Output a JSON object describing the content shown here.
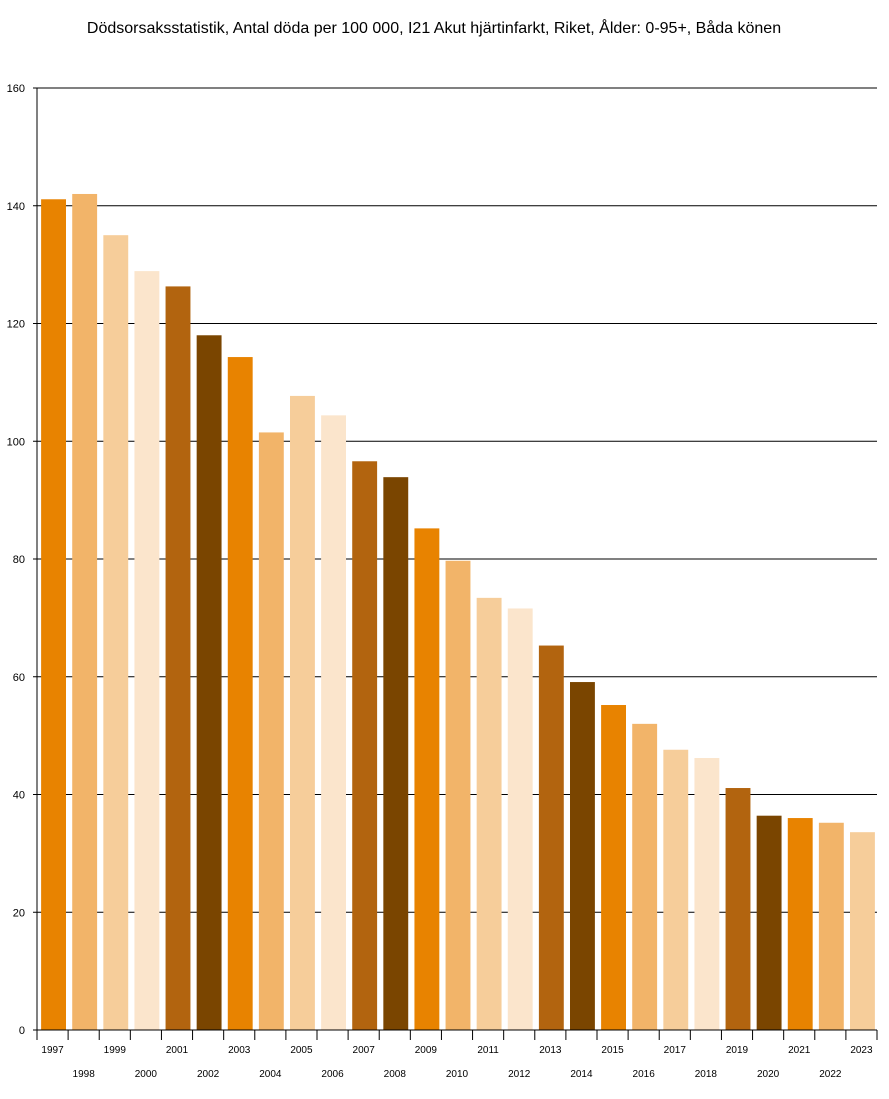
{
  "chart_data": {
    "type": "bar",
    "title": "Dödsorsaksstatistik, Antal döda per 100 000, I21 Akut hjärtinfarkt, Riket, Ålder: 0-95+, Båda könen",
    "categories": [
      "1997",
      "1998",
      "1999",
      "2000",
      "2001",
      "2002",
      "2003",
      "2004",
      "2005",
      "2006",
      "2007",
      "2008",
      "2009",
      "2010",
      "2011",
      "2012",
      "2013",
      "2014",
      "2015",
      "2016",
      "2017",
      "2018",
      "2019",
      "2020",
      "2021",
      "2022",
      "2023"
    ],
    "values": [
      141.1,
      142.0,
      135.0,
      128.9,
      126.3,
      118.0,
      114.3,
      101.5,
      107.7,
      104.4,
      96.6,
      93.9,
      85.2,
      79.7,
      73.4,
      71.6,
      65.3,
      59.1,
      55.2,
      52.0,
      47.6,
      46.2,
      41.1,
      36.4,
      36.0,
      35.2,
      33.6
    ],
    "colors": [
      "#e88300",
      "#f2b469",
      "#f6cd9a",
      "#fbe5cc",
      "#b2640f",
      "#7a4500"
    ],
    "xlabel": "",
    "ylabel": "",
    "ylim": [
      0,
      160
    ],
    "yticks": [
      0,
      20,
      40,
      60,
      80,
      100,
      120,
      140,
      160
    ],
    "grid": true,
    "legend": "none"
  }
}
